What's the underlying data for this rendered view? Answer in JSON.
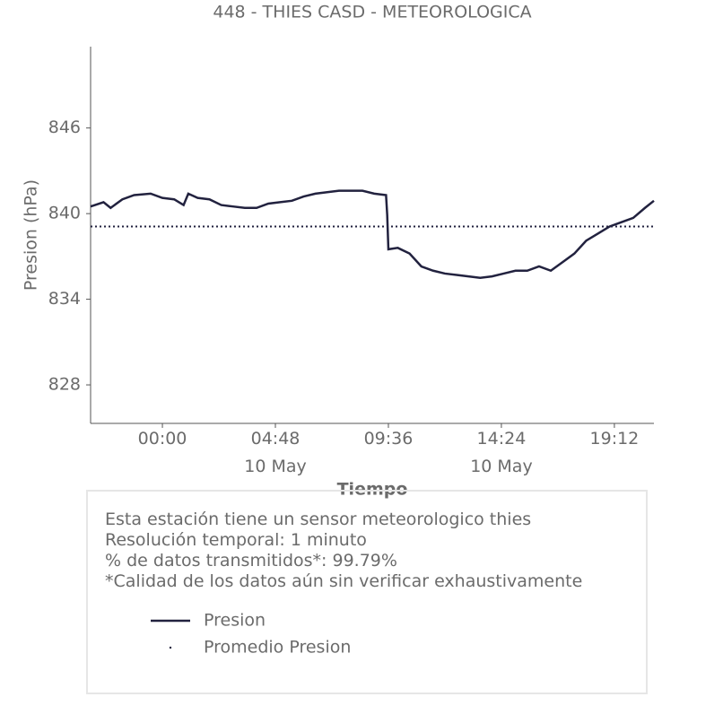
{
  "chart_data": {
    "type": "line",
    "title": "448 - THIES CASD - METEOROLOGICA",
    "x_label": "Tiempo",
    "y_label": "Presion (hPa)",
    "x": [
      -3.05,
      -2.5,
      -2.2,
      -1.7,
      -1.2,
      -0.5,
      0,
      0.5,
      0.9,
      1.1,
      1.5,
      2.0,
      2.5,
      3.0,
      3.5,
      4.0,
      4.5,
      5.0,
      5.5,
      6.0,
      6.5,
      7.0,
      7.5,
      8.0,
      8.5,
      9.0,
      9.5,
      9.55,
      9.6,
      10.0,
      10.5,
      11.0,
      11.5,
      12.0,
      12.5,
      13.0,
      13.5,
      14.0,
      14.5,
      15.0,
      15.5,
      16.0,
      16.5,
      17.0,
      17.5,
      18.0,
      18.5,
      19.0,
      19.5,
      20.0,
      20.5,
      20.88
    ],
    "series": [
      {
        "name": "Presion",
        "color": "#22223f",
        "values": [
          840.5,
          840.8,
          840.4,
          841.0,
          841.3,
          841.4,
          841.1,
          841.0,
          840.6,
          841.4,
          841.1,
          841.0,
          840.6,
          840.5,
          840.4,
          840.4,
          840.7,
          840.8,
          840.9,
          841.2,
          841.4,
          841.5,
          841.6,
          841.6,
          841.6,
          841.4,
          841.3,
          839.9,
          837.5,
          837.6,
          837.2,
          836.3,
          836.0,
          835.8,
          835.7,
          835.6,
          835.5,
          835.6,
          835.8,
          836.0,
          836.0,
          836.3,
          836.0,
          836.6,
          837.2,
          838.1,
          838.6,
          839.1,
          839.4,
          839.7,
          840.4,
          840.9
        ]
      }
    ],
    "reference_line": {
      "name": "Promedio Presion",
      "value": 839.1,
      "color": "#22223f"
    },
    "xlim": [
      -3.05,
      20.88
    ],
    "xticks": [
      {
        "value": 0,
        "label": "00:00"
      },
      {
        "value": 4.8,
        "label": "04:48\n10 May"
      },
      {
        "value": 9.6,
        "label": "09:36"
      },
      {
        "value": 14.4,
        "label": "14:24\n10 May"
      },
      {
        "value": 19.2,
        "label": "19:12"
      }
    ],
    "ylim": [
      825.3,
      851.7
    ],
    "yticks": [
      828,
      834,
      840,
      846
    ]
  },
  "info": {
    "lines": [
      "Esta estación tiene un sensor meteorologico thies",
      "Resolución temporal: 1 minuto",
      "% de datos transmitidos*: 99.79%",
      "*Calidad de los datos aún sin verificar exhaustivamente"
    ]
  }
}
